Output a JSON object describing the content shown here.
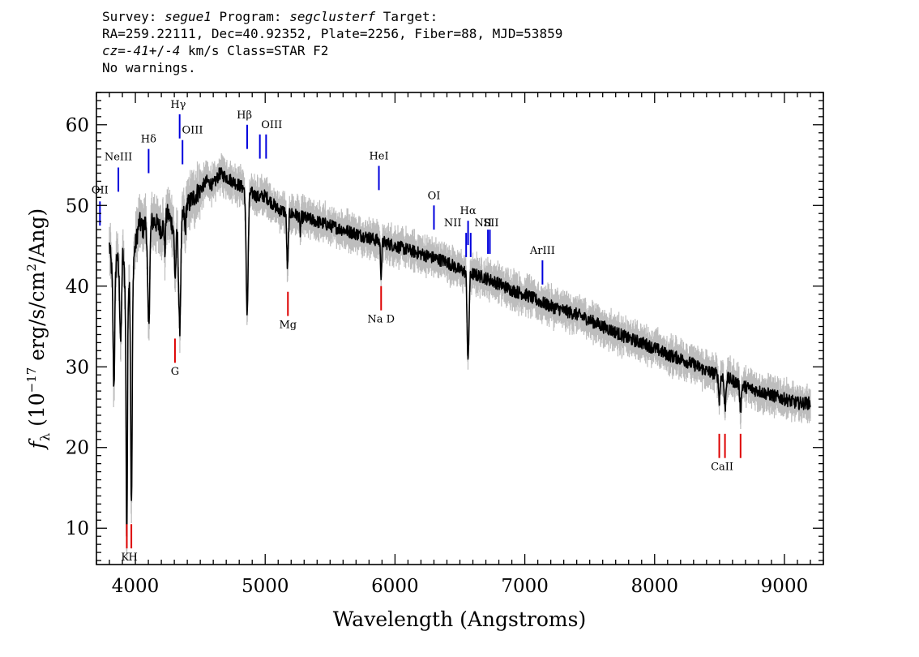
{
  "header": {
    "l1_a": "Survey: ",
    "survey": "segue1",
    "l1_b": " Program: ",
    "program": "segclusterf",
    "l1_c": " Target:",
    "line2": "RA=259.22111, Dec=40.92352, Plate=2256, Fiber=88, MJD=53859",
    "cz_label": "cz",
    "l3_a": "=",
    "cz_value": "-41",
    "l3_b": "+/-",
    "cz_err": "4",
    "l3_c": " km/s Class=STAR F2",
    "line4": "No warnings."
  },
  "chart_data": {
    "type": "line",
    "xlabel": "Wavelength (Angstroms)",
    "ylabel_parts": {
      "f": "f",
      "lambda": "λ",
      "pre": " (10",
      "exp1": "−17",
      "mid": " erg/s/cm",
      "exp2": "2",
      "post": "/Ang)"
    },
    "xlim": [
      3700,
      9300
    ],
    "ylim": [
      5.5,
      64
    ],
    "xticks": [
      4000,
      5000,
      6000,
      7000,
      8000,
      9000
    ],
    "yticks": [
      10,
      20,
      30,
      40,
      50,
      60
    ],
    "flux_color": "#000000",
    "error_color": "#bdbdbd",
    "emission_color": "#0000dd",
    "absorption_color": "#dd0000",
    "continuum_points": [
      [
        3800,
        45
      ],
      [
        3830,
        40
      ],
      [
        3860,
        44
      ],
      [
        3880,
        40
      ],
      [
        3900,
        45
      ],
      [
        3930,
        38
      ],
      [
        3960,
        42
      ],
      [
        3990,
        44
      ],
      [
        4030,
        48
      ],
      [
        4060,
        47
      ],
      [
        4080,
        48
      ],
      [
        4150,
        48
      ],
      [
        4200,
        47
      ],
      [
        4250,
        49
      ],
      [
        4300,
        47
      ],
      [
        4350,
        48
      ],
      [
        4400,
        50
      ],
      [
        4450,
        51
      ],
      [
        4500,
        52
      ],
      [
        4550,
        53
      ],
      [
        4600,
        52.5
      ],
      [
        4650,
        54
      ],
      [
        4700,
        53.5
      ],
      [
        4750,
        53
      ],
      [
        4800,
        52.5
      ],
      [
        4850,
        52
      ],
      [
        4900,
        51.5
      ],
      [
        4950,
        51
      ],
      [
        5000,
        51.2
      ],
      [
        5100,
        49.5
      ],
      [
        5200,
        49
      ],
      [
        5300,
        48.5
      ],
      [
        5400,
        48
      ],
      [
        5500,
        47.5
      ],
      [
        5600,
        47
      ],
      [
        5700,
        46.5
      ],
      [
        5800,
        46
      ],
      [
        5900,
        45.5
      ],
      [
        6000,
        45
      ],
      [
        6100,
        44.5
      ],
      [
        6200,
        44
      ],
      [
        6300,
        43.5
      ],
      [
        6400,
        43
      ],
      [
        6500,
        42
      ],
      [
        6600,
        41.5
      ],
      [
        6700,
        41
      ],
      [
        6800,
        40.3
      ],
      [
        6900,
        39.5
      ],
      [
        7000,
        39
      ],
      [
        7100,
        38.2
      ],
      [
        7200,
        37.5
      ],
      [
        7300,
        37
      ],
      [
        7400,
        36.5
      ],
      [
        7500,
        35.8
      ],
      [
        7600,
        35
      ],
      [
        7700,
        34.3
      ],
      [
        7800,
        33.5
      ],
      [
        7900,
        33
      ],
      [
        8000,
        32.3
      ],
      [
        8100,
        31.5
      ],
      [
        8200,
        31
      ],
      [
        8300,
        30.3
      ],
      [
        8400,
        29.5
      ],
      [
        8500,
        29
      ],
      [
        8600,
        28.3
      ],
      [
        8700,
        27.5
      ],
      [
        8800,
        27
      ],
      [
        8900,
        26.5
      ],
      [
        9000,
        26
      ],
      [
        9100,
        25.5
      ],
      [
        9200,
        25.5
      ]
    ],
    "absorption_dips": [
      {
        "center": 3835,
        "depth": 13,
        "width": 6
      },
      {
        "center": 3889,
        "depth": 9,
        "width": 6
      },
      {
        "center": 3934,
        "depth": 30,
        "width": 5
      },
      {
        "center": 3970,
        "depth": 30,
        "width": 6
      },
      {
        "center": 4102,
        "depth": 13,
        "width": 8
      },
      {
        "center": 4227,
        "depth": 4,
        "width": 4
      },
      {
        "center": 4307,
        "depth": 6,
        "width": 6
      },
      {
        "center": 4341,
        "depth": 13,
        "width": 8
      },
      {
        "center": 4384,
        "depth": 3,
        "width": 4
      },
      {
        "center": 4861,
        "depth": 15,
        "width": 8
      },
      {
        "center": 5172,
        "depth": 7,
        "width": 6
      },
      {
        "center": 5270,
        "depth": 2,
        "width": 4
      },
      {
        "center": 5893,
        "depth": 4,
        "width": 5
      },
      {
        "center": 6563,
        "depth": 11,
        "width": 7
      },
      {
        "center": 8498,
        "depth": 3,
        "width": 6
      },
      {
        "center": 8542,
        "depth": 4,
        "width": 6
      },
      {
        "center": 8662,
        "depth": 3,
        "width": 6
      }
    ],
    "emission_lines": [
      {
        "label": "OII",
        "x": 3727,
        "y0": 47.5,
        "y1": 50.5,
        "lx": 3727,
        "ly": 51.5
      },
      {
        "label": "NeIII",
        "x": 3869,
        "y0": 51.7,
        "y1": 54.7,
        "lx": 3869,
        "ly": 55.6
      },
      {
        "label": "Hδ",
        "x": 4102,
        "y0": 54.0,
        "y1": 57.0,
        "lx": 4102,
        "ly": 57.8
      },
      {
        "label": "Hγ",
        "x": 4341,
        "y0": 58.3,
        "y1": 61.3,
        "lx": 4330,
        "ly": 62.1
      },
      {
        "label": "OIII",
        "x": 4363,
        "y0": 55.1,
        "y1": 58.1,
        "lx": 4440,
        "ly": 58.9
      },
      {
        "label": "Hβ",
        "x": 4861,
        "y0": 57.0,
        "y1": 60.0,
        "lx": 4840,
        "ly": 60.8
      },
      {
        "label": "OIII",
        "x": 4959,
        "y0": 55.8,
        "y1": 58.8,
        "lx": 5050,
        "ly": 59.6
      },
      {
        "label": "",
        "x": 5007,
        "y0": 55.8,
        "y1": 58.8
      },
      {
        "label": "HeI",
        "x": 5876,
        "y0": 51.9,
        "y1": 54.9,
        "lx": 5876,
        "ly": 55.7
      },
      {
        "label": "OI",
        "x": 6300,
        "y0": 47.0,
        "y1": 50.0,
        "lx": 6300,
        "ly": 50.8
      },
      {
        "label": "Hα",
        "x": 6563,
        "y0": 45.1,
        "y1": 48.1,
        "lx": 6563,
        "ly": 48.9
      },
      {
        "label": "NII",
        "x": 6548,
        "y0": 43.6,
        "y1": 46.6,
        "lx": 6445,
        "ly": 47.4
      },
      {
        "label": "",
        "x": 6583,
        "y0": 43.6,
        "y1": 46.6
      },
      {
        "label": "NII",
        "x": 6716,
        "y0": 44.0,
        "y1": 47.0,
        "lx": 6680,
        "ly": 47.4
      },
      {
        "label": "SII",
        "x": 6731,
        "y0": 44.0,
        "y1": 47.0,
        "lx": 6740,
        "ly": 47.4
      },
      {
        "label": "ArIII",
        "x": 7136,
        "y0": 40.2,
        "y1": 43.2,
        "lx": 7136,
        "ly": 44.0
      }
    ],
    "absorption_lines": [
      {
        "label": "K",
        "x": 3934,
        "y0": 7.5,
        "y1": 10.5,
        "lx": 3920,
        "ly": 6.0
      },
      {
        "label": "H",
        "x": 3969,
        "y0": 7.5,
        "y1": 10.5,
        "lx": 3982,
        "ly": 6.0
      },
      {
        "label": "G",
        "x": 4305,
        "y0": 30.5,
        "y1": 33.5,
        "lx": 4305,
        "ly": 29.0
      },
      {
        "label": "Mg",
        "x": 5175,
        "y0": 36.3,
        "y1": 39.3,
        "lx": 5175,
        "ly": 34.8
      },
      {
        "label": "Na D",
        "x": 5893,
        "y0": 37.0,
        "y1": 40.0,
        "lx": 5893,
        "ly": 35.5
      },
      {
        "label": "",
        "x": 8498,
        "y0": 18.7,
        "y1": 21.7
      },
      {
        "label": "CaII",
        "x": 8542,
        "y0": 18.7,
        "y1": 21.7,
        "lx": 8520,
        "ly": 17.2
      },
      {
        "label": "",
        "x": 8662,
        "y0": 18.7,
        "y1": 21.7
      }
    ]
  }
}
